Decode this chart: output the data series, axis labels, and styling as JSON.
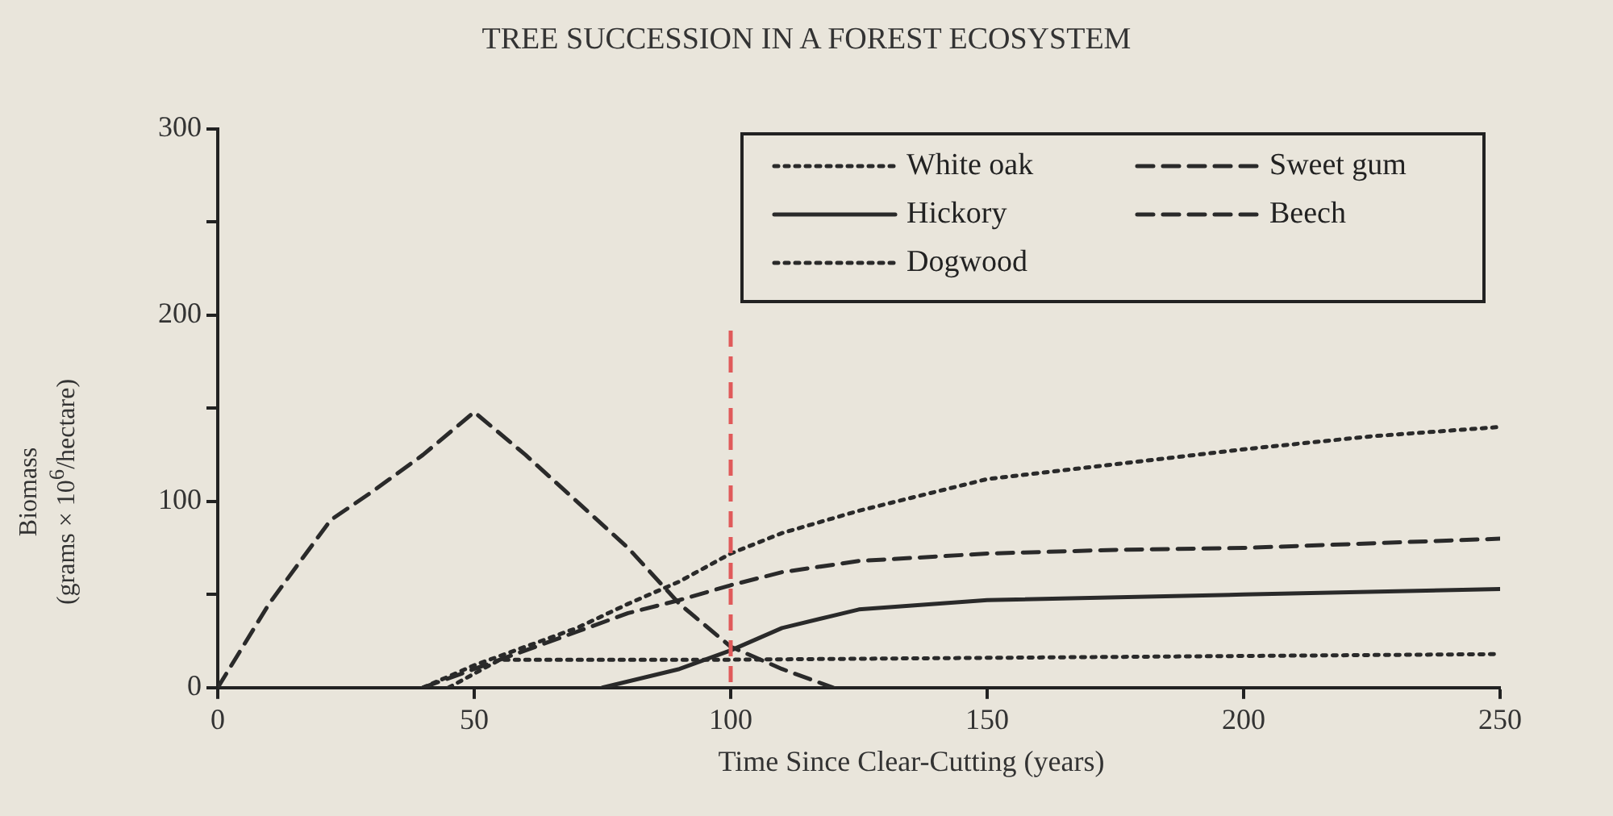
{
  "chart_data": {
    "type": "line",
    "title": "TREE SUCCESSION IN A FOREST ECOSYSTEM",
    "xlabel": "Time Since Clear-Cutting (years)",
    "ylabel": "Biomass\n(grams × 10$^{6}$/hectare)",
    "xlim": [
      0,
      250
    ],
    "xticks": [
      0,
      50,
      100,
      150,
      200,
      250
    ],
    "ylim": [
      0,
      300
    ],
    "yticks": [
      0,
      {
        "value": 50,
        "label": null
      },
      100,
      {
        "value": 150,
        "label": null
      },
      200,
      {
        "value": 250,
        "label": null
      },
      300
    ],
    "grid": false,
    "legend": "top right",
    "marker": "none",
    "series": [
      {
        "name": "White oak",
        "color": "#2a2a2a",
        "line_style": "dotted",
        "x": [
          40,
          50,
          60,
          70,
          80,
          90,
          100,
          110,
          125,
          150,
          175,
          200,
          225,
          250
        ],
        "values": [
          0,
          12,
          22,
          32,
          45,
          57,
          72,
          83,
          95,
          112,
          120,
          128,
          135,
          140
        ]
      },
      {
        "name": "Hickory",
        "color": "#2a2a2a",
        "line_style": "solid",
        "x": [
          75,
          90,
          100,
          110,
          125,
          150,
          200,
          250
        ],
        "values": [
          0,
          10,
          20,
          32,
          42,
          47,
          50,
          53
        ]
      },
      {
        "name": "Dogwood",
        "color": "#2a2a2a",
        "line_style": "dotted",
        "x": [
          45,
          55,
          100,
          150,
          200,
          250
        ],
        "values": [
          0,
          15,
          15,
          16,
          17,
          18
        ]
      },
      {
        "name": "Sweet gum",
        "color": "#2a2a2a",
        "line_style": "dashed",
        "x": [
          0,
          10,
          22,
          30,
          40,
          50,
          60,
          70,
          80,
          90,
          100,
          110,
          120
        ],
        "values": [
          0,
          45,
          90,
          105,
          125,
          148,
          125,
          100,
          75,
          45,
          22,
          10,
          0
        ]
      },
      {
        "name": "Beech",
        "color": "#2a2a2a",
        "line_style": "dashed",
        "x": [
          40,
          50,
          60,
          70,
          80,
          90,
          100,
          110,
          125,
          150,
          175,
          200,
          250
        ],
        "values": [
          0,
          10,
          20,
          30,
          40,
          47,
          55,
          62,
          68,
          72,
          74,
          75,
          80
        ]
      }
    ],
    "ref_lines": [
      {
        "axis": "x",
        "value": 100,
        "label": null,
        "color": "#e05a5a",
        "line_style": "dashed"
      }
    ]
  }
}
